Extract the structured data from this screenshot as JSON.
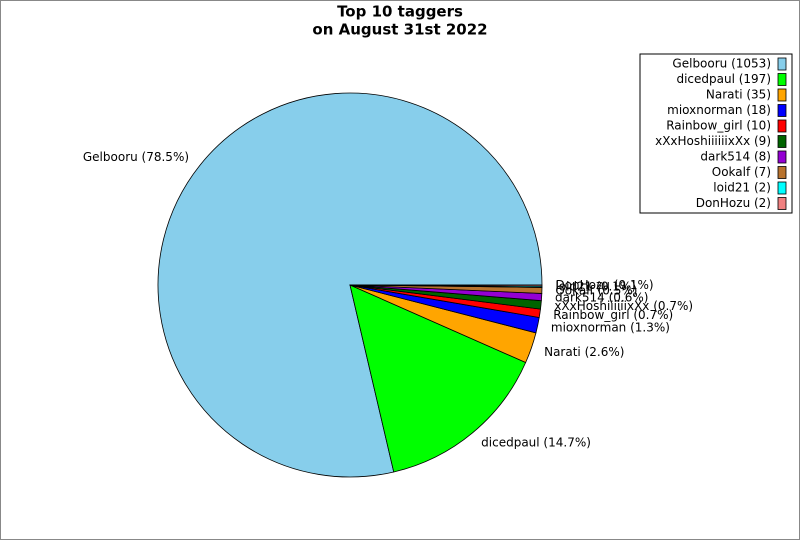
{
  "chart_data": {
    "type": "pie",
    "title": [
      "Top 10 taggers",
      "on August 31st 2022"
    ],
    "categories": [
      "Gelbooru",
      "dicedpaul",
      "Narati",
      "mioxnorman",
      "Rainbow_girl",
      "xXxHoshiiiiiixXx",
      "dark514",
      "Ookalf",
      "loid21",
      "DonHozu"
    ],
    "values": [
      78.5,
      14.7,
      2.6,
      1.3,
      0.7,
      0.7,
      0.6,
      0.5,
      0.1,
      0.1
    ],
    "value_labels": [
      "Gelbooru (78.5%)",
      "dicedpaul (14.7%)",
      "Narati (2.6%)",
      "mioxnorman (1.3%)",
      "Rainbow_girl (0.7%)",
      "xXxHoshiiiiiixXx (0.7%)",
      "dark514 (0.6%)",
      "Ookalf (0.5%)",
      "loid21 (0.1%)",
      "DonHozu (0.1%)"
    ],
    "legend_labels": [
      "Gelbooru (1053)",
      "dicedpaul (197)",
      "Narati (35)",
      "mioxnorman (18)",
      "Rainbow_girl (10)",
      "xXxHoshiiiiiixXx (9)",
      "dark514 (8)",
      "Ookalf (7)",
      "loid21 (2)",
      "DonHozu (2)"
    ],
    "colors": [
      "#87ceeb",
      "#00ff00",
      "#ffa500",
      "#0000ff",
      "#ff0000",
      "#006400",
      "#9400d3",
      "#b8732e",
      "#00ffff",
      "#f08080"
    ],
    "legend": "upper right"
  }
}
